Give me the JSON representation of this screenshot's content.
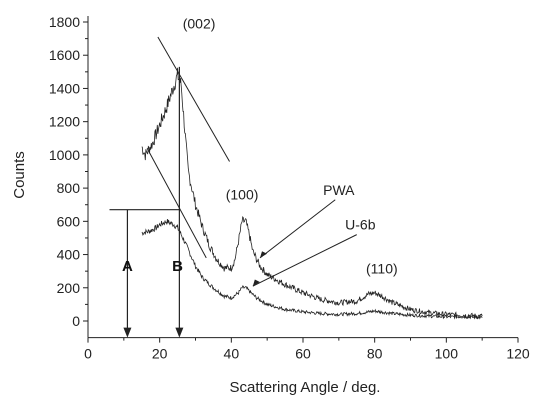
{
  "chart_data": {
    "type": "line",
    "xlabel": "Scattering Angle / deg.",
    "ylabel": "Counts",
    "xlim": [
      0,
      120
    ],
    "ylim": [
      -100,
      1800
    ],
    "xticks": [
      0,
      20,
      40,
      60,
      80,
      100,
      120
    ],
    "yticks": [
      0,
      200,
      400,
      600,
      800,
      1000,
      1200,
      1400,
      1600,
      1800
    ],
    "grid": false,
    "series": [
      {
        "name": "PWA",
        "x": [
          15,
          16,
          18,
          20,
          22,
          24,
          25,
          26,
          27,
          28,
          30,
          32,
          34,
          36,
          38,
          40,
          41,
          42,
          43,
          44,
          45,
          46,
          48,
          50,
          55,
          60,
          65,
          70,
          75,
          78,
          80,
          82,
          85,
          90,
          95,
          100,
          105,
          110
        ],
        "y": [
          1050,
          1000,
          1070,
          1180,
          1290,
          1420,
          1480,
          1420,
          1150,
          900,
          700,
          560,
          450,
          370,
          320,
          320,
          370,
          480,
          600,
          600,
          520,
          420,
          330,
          280,
          220,
          170,
          130,
          110,
          120,
          160,
          170,
          150,
          110,
          70,
          50,
          40,
          35,
          30
        ],
        "color": "#222222"
      },
      {
        "name": "U-6b",
        "x": [
          15,
          17,
          19,
          20,
          22,
          24,
          25,
          26,
          28,
          30,
          32,
          35,
          38,
          40,
          42,
          43,
          44,
          45,
          47,
          50,
          55,
          60,
          65,
          70,
          75,
          80,
          85,
          90,
          95,
          100,
          105,
          110
        ],
        "y": [
          530,
          540,
          560,
          580,
          600,
          580,
          560,
          520,
          430,
          330,
          260,
          200,
          150,
          140,
          170,
          200,
          200,
          180,
          140,
          100,
          70,
          55,
          45,
          40,
          45,
          60,
          45,
          35,
          30,
          25,
          25,
          20
        ],
        "color": "#222222"
      }
    ],
    "annotations": [
      {
        "text": "(002)",
        "x": 31,
        "y": 1760
      },
      {
        "text": "(100)",
        "x": 43,
        "y": 730
      },
      {
        "text": "(110)",
        "x": 82,
        "y": 285
      },
      {
        "text": "PWA",
        "x": 70,
        "y": 760
      },
      {
        "text": "U-6b",
        "x": 76,
        "y": 550
      },
      {
        "text": "A",
        "x": 11,
        "y": 300
      },
      {
        "text": "B",
        "x": 25,
        "y": 300
      }
    ]
  }
}
